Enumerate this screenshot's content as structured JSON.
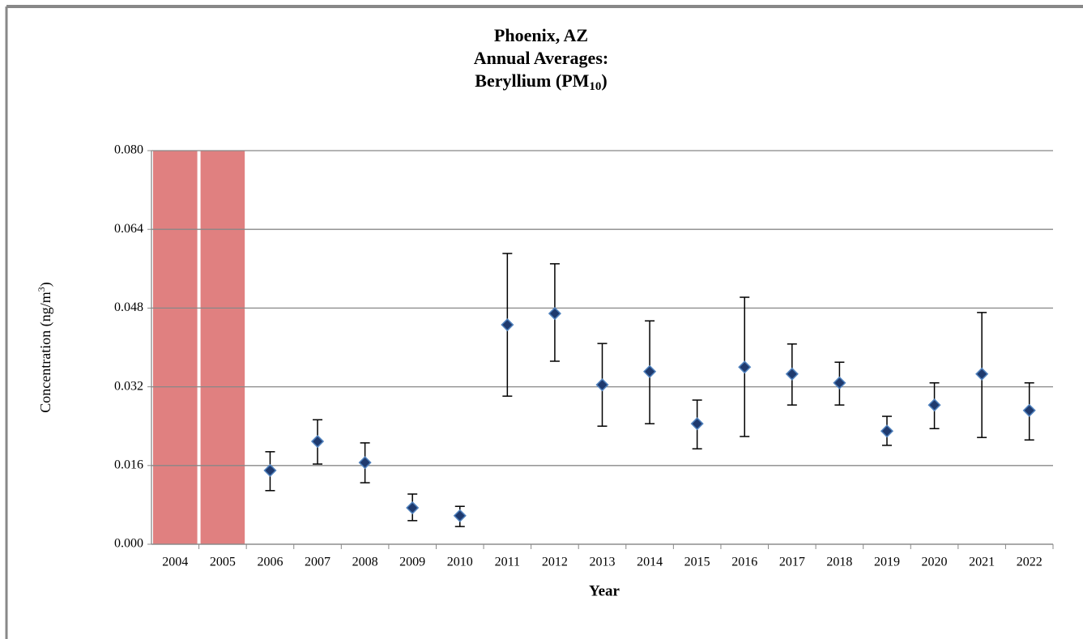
{
  "chart_data": {
    "type": "scatter",
    "title_lines": [
      "Phoenix, AZ",
      "Annual Averages:"
    ],
    "title_formula": {
      "text": "Beryllium (PM",
      "sub": "10",
      "end": ")"
    },
    "y_label": {
      "text": "Concentration (ng/m",
      "sup": "3",
      "end": ")"
    },
    "x_label": "Year",
    "categories": [
      "2004",
      "2005",
      "2006",
      "2007",
      "2008",
      "2009",
      "2010",
      "2011",
      "2012",
      "2013",
      "2014",
      "2015",
      "2016",
      "2017",
      "2018",
      "2019",
      "2020",
      "2021",
      "2022"
    ],
    "values": [
      null,
      null,
      0.015,
      0.0209,
      0.0166,
      0.0074,
      0.0058,
      0.0446,
      0.0469,
      0.0324,
      0.0351,
      0.0245,
      0.036,
      0.0346,
      0.0328,
      0.023,
      0.0283,
      0.0346,
      0.0272
    ],
    "error_low": [
      null,
      null,
      0.0109,
      0.0163,
      0.0125,
      0.0048,
      0.0036,
      0.0301,
      0.0372,
      0.024,
      0.0245,
      0.0194,
      0.0219,
      0.0283,
      0.0283,
      0.0201,
      0.0235,
      0.0217,
      0.0212
    ],
    "error_high": [
      null,
      null,
      0.0188,
      0.0253,
      0.0206,
      0.0102,
      0.0077,
      0.0591,
      0.057,
      0.0408,
      0.0454,
      0.0293,
      0.0502,
      0.0407,
      0.037,
      0.026,
      0.0328,
      0.0471,
      0.0328
    ],
    "color": "#1f3a6e",
    "marker_edge": "#4f81bd",
    "shaded": [
      0,
      1
    ],
    "shade_color": "#e08080",
    "ylim": [
      0,
      0.08
    ],
    "yticks": [
      {
        "value": 0,
        "label": "0.000"
      },
      {
        "value": 0.016,
        "label": "0.016"
      },
      {
        "value": 0.032,
        "label": "0.032"
      },
      {
        "value": 0.048,
        "label": "0.048"
      },
      {
        "value": 0.064,
        "label": "0.064"
      },
      {
        "value": 0.08,
        "label": "0.080"
      }
    ],
    "grid": true
  }
}
